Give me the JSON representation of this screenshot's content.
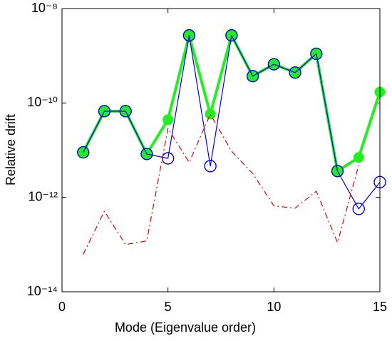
{
  "chart_data": {
    "type": "line",
    "xlabel": "Mode (Eigenvalue order)",
    "ylabel": "Relative drift",
    "x": [
      1,
      2,
      3,
      4,
      5,
      6,
      7,
      8,
      9,
      10,
      11,
      12,
      13,
      14,
      15
    ],
    "series": [
      {
        "color": "#22ee22",
        "marker": "star",
        "linewidth": 4,
        "dash": "solid",
        "values": [
          9e-12,
          6.7e-11,
          6.7e-11,
          8.3e-12,
          4.4e-11,
          2.7e-09,
          5.8e-11,
          2.7e-09,
          3.7e-10,
          6.6e-10,
          4.4e-10,
          1.1e-09,
          3.6e-12,
          7e-12,
          1.7e-10
        ]
      },
      {
        "color": "#0000dd",
        "marker": "circle",
        "linewidth": 1.2,
        "dash": "solid",
        "values": [
          9e-12,
          6.7e-11,
          6.7e-11,
          8.3e-12,
          6.7e-12,
          2.7e-09,
          4.6e-12,
          2.7e-09,
          3.7e-10,
          6.6e-10,
          4.4e-10,
          1.1e-09,
          3.6e-12,
          5.7e-13,
          2.1e-12
        ]
      },
      {
        "color": "#dd0000",
        "marker": "none",
        "linewidth": 1.2,
        "dash": "dashdot",
        "values": [
          6.2e-14,
          5.1e-13,
          1e-13,
          1.2e-13,
          2.9e-11,
          5.5e-12,
          5.8e-11,
          9.5e-12,
          3.2e-12,
          6.6e-13,
          5.9e-13,
          1.35e-12,
          1.1e-13,
          4.8e-12,
          null
        ]
      }
    ],
    "xlim": [
      0,
      15
    ],
    "xticks": [
      0,
      5,
      10,
      15
    ],
    "ylim": [
      1e-14,
      1e-08
    ],
    "ylog": true,
    "yticks": [
      {
        "value": 1e-14,
        "label": "10⁻¹⁴"
      },
      {
        "value": 1e-12,
        "label": "10⁻¹²"
      },
      {
        "value": 1e-10,
        "label": "10⁻¹⁰"
      },
      {
        "value": 1e-08,
        "label": "10⁻⁸"
      }
    ]
  }
}
